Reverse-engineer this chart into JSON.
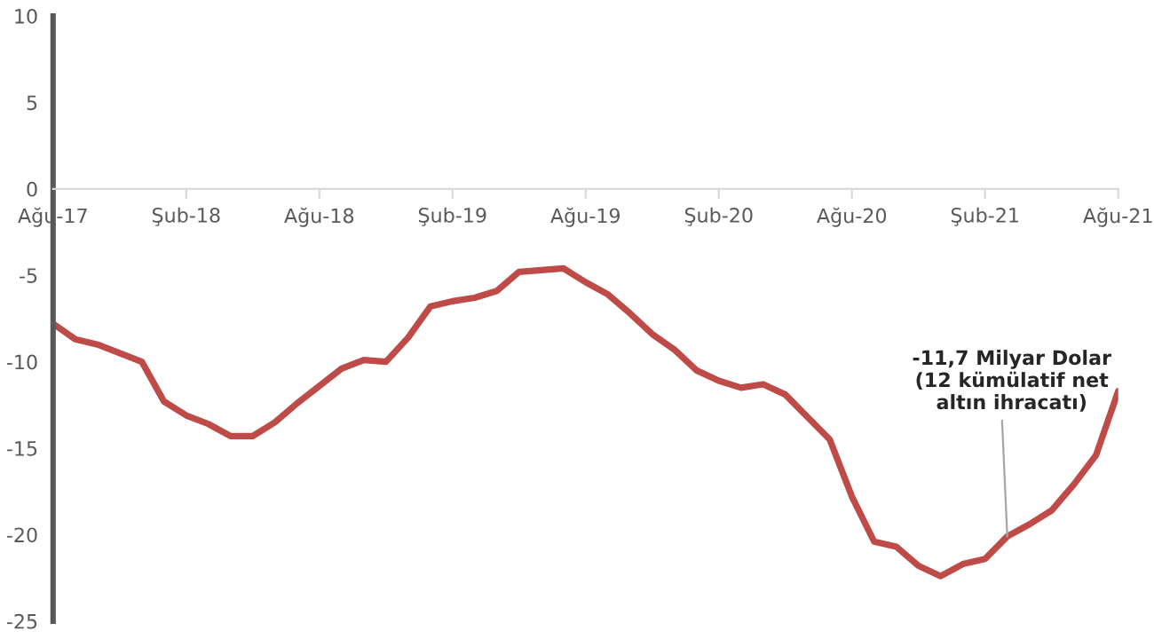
{
  "chart_data": {
    "type": "line",
    "x": [
      "2017-08",
      "2017-09",
      "2017-10",
      "2017-11",
      "2017-12",
      "2018-01",
      "2018-02",
      "2018-03",
      "2018-04",
      "2018-05",
      "2018-06",
      "2018-07",
      "2018-08",
      "2018-09",
      "2018-10",
      "2018-11",
      "2018-12",
      "2019-01",
      "2019-02",
      "2019-03",
      "2019-04",
      "2019-05",
      "2019-06",
      "2019-07",
      "2019-08",
      "2019-09",
      "2019-10",
      "2019-11",
      "2019-12",
      "2020-01",
      "2020-02",
      "2020-03",
      "2020-04",
      "2020-05",
      "2020-06",
      "2020-07",
      "2020-08",
      "2020-09",
      "2020-10",
      "2020-11",
      "2020-12",
      "2021-01",
      "2021-02",
      "2021-03",
      "2021-04",
      "2021-05",
      "2021-06",
      "2021-07",
      "2021-08"
    ],
    "series": [
      {
        "color": "#be4b48",
        "values": [
          -7.8,
          -8.7,
          -9.0,
          -9.5,
          -10.0,
          -12.3,
          -13.1,
          -13.6,
          -14.3,
          -14.3,
          -13.5,
          -12.4,
          -11.4,
          -10.4,
          -9.9,
          -10.0,
          -8.6,
          -6.8,
          -6.5,
          -6.3,
          -5.9,
          -4.8,
          -4.7,
          -4.6,
          -5.4,
          -6.1,
          -7.2,
          -8.4,
          -9.3,
          -10.5,
          -11.1,
          -11.5,
          -11.3,
          -11.9,
          -13.2,
          -14.5,
          -17.8,
          -20.4,
          -20.7,
          -21.8,
          -22.4,
          -21.7,
          -21.4,
          -20.1,
          -19.4,
          -18.6,
          -17.1,
          -15.4,
          -11.7
        ]
      }
    ],
    "xlim": [
      "2017-08",
      "2021-08"
    ],
    "xticks": [
      {
        "value": "2017-08",
        "label": "Ağu-17"
      },
      {
        "value": "2018-02",
        "label": "Şub-18"
      },
      {
        "value": "2018-08",
        "label": "Ağu-18"
      },
      {
        "value": "2019-02",
        "label": "Şub-19"
      },
      {
        "value": "2019-08",
        "label": "Ağu-19"
      },
      {
        "value": "2020-02",
        "label": "Şub-20"
      },
      {
        "value": "2020-08",
        "label": "Ağu-20"
      },
      {
        "value": "2021-02",
        "label": "Şub-21"
      },
      {
        "value": "2021-08",
        "label": "Ağu-21"
      }
    ],
    "ylim": [
      -25,
      10
    ],
    "yticks": [
      -25,
      -20,
      -15,
      -10,
      -5,
      0,
      5,
      10
    ],
    "grid": false,
    "marker": "none",
    "line_style": "solid",
    "annotations": [
      {
        "text": "-11,7 Milyar Dolar\n(12 kümülatif net\naltın ihracatı)",
        "x": "2021-03",
        "y": -20.1
      }
    ]
  }
}
